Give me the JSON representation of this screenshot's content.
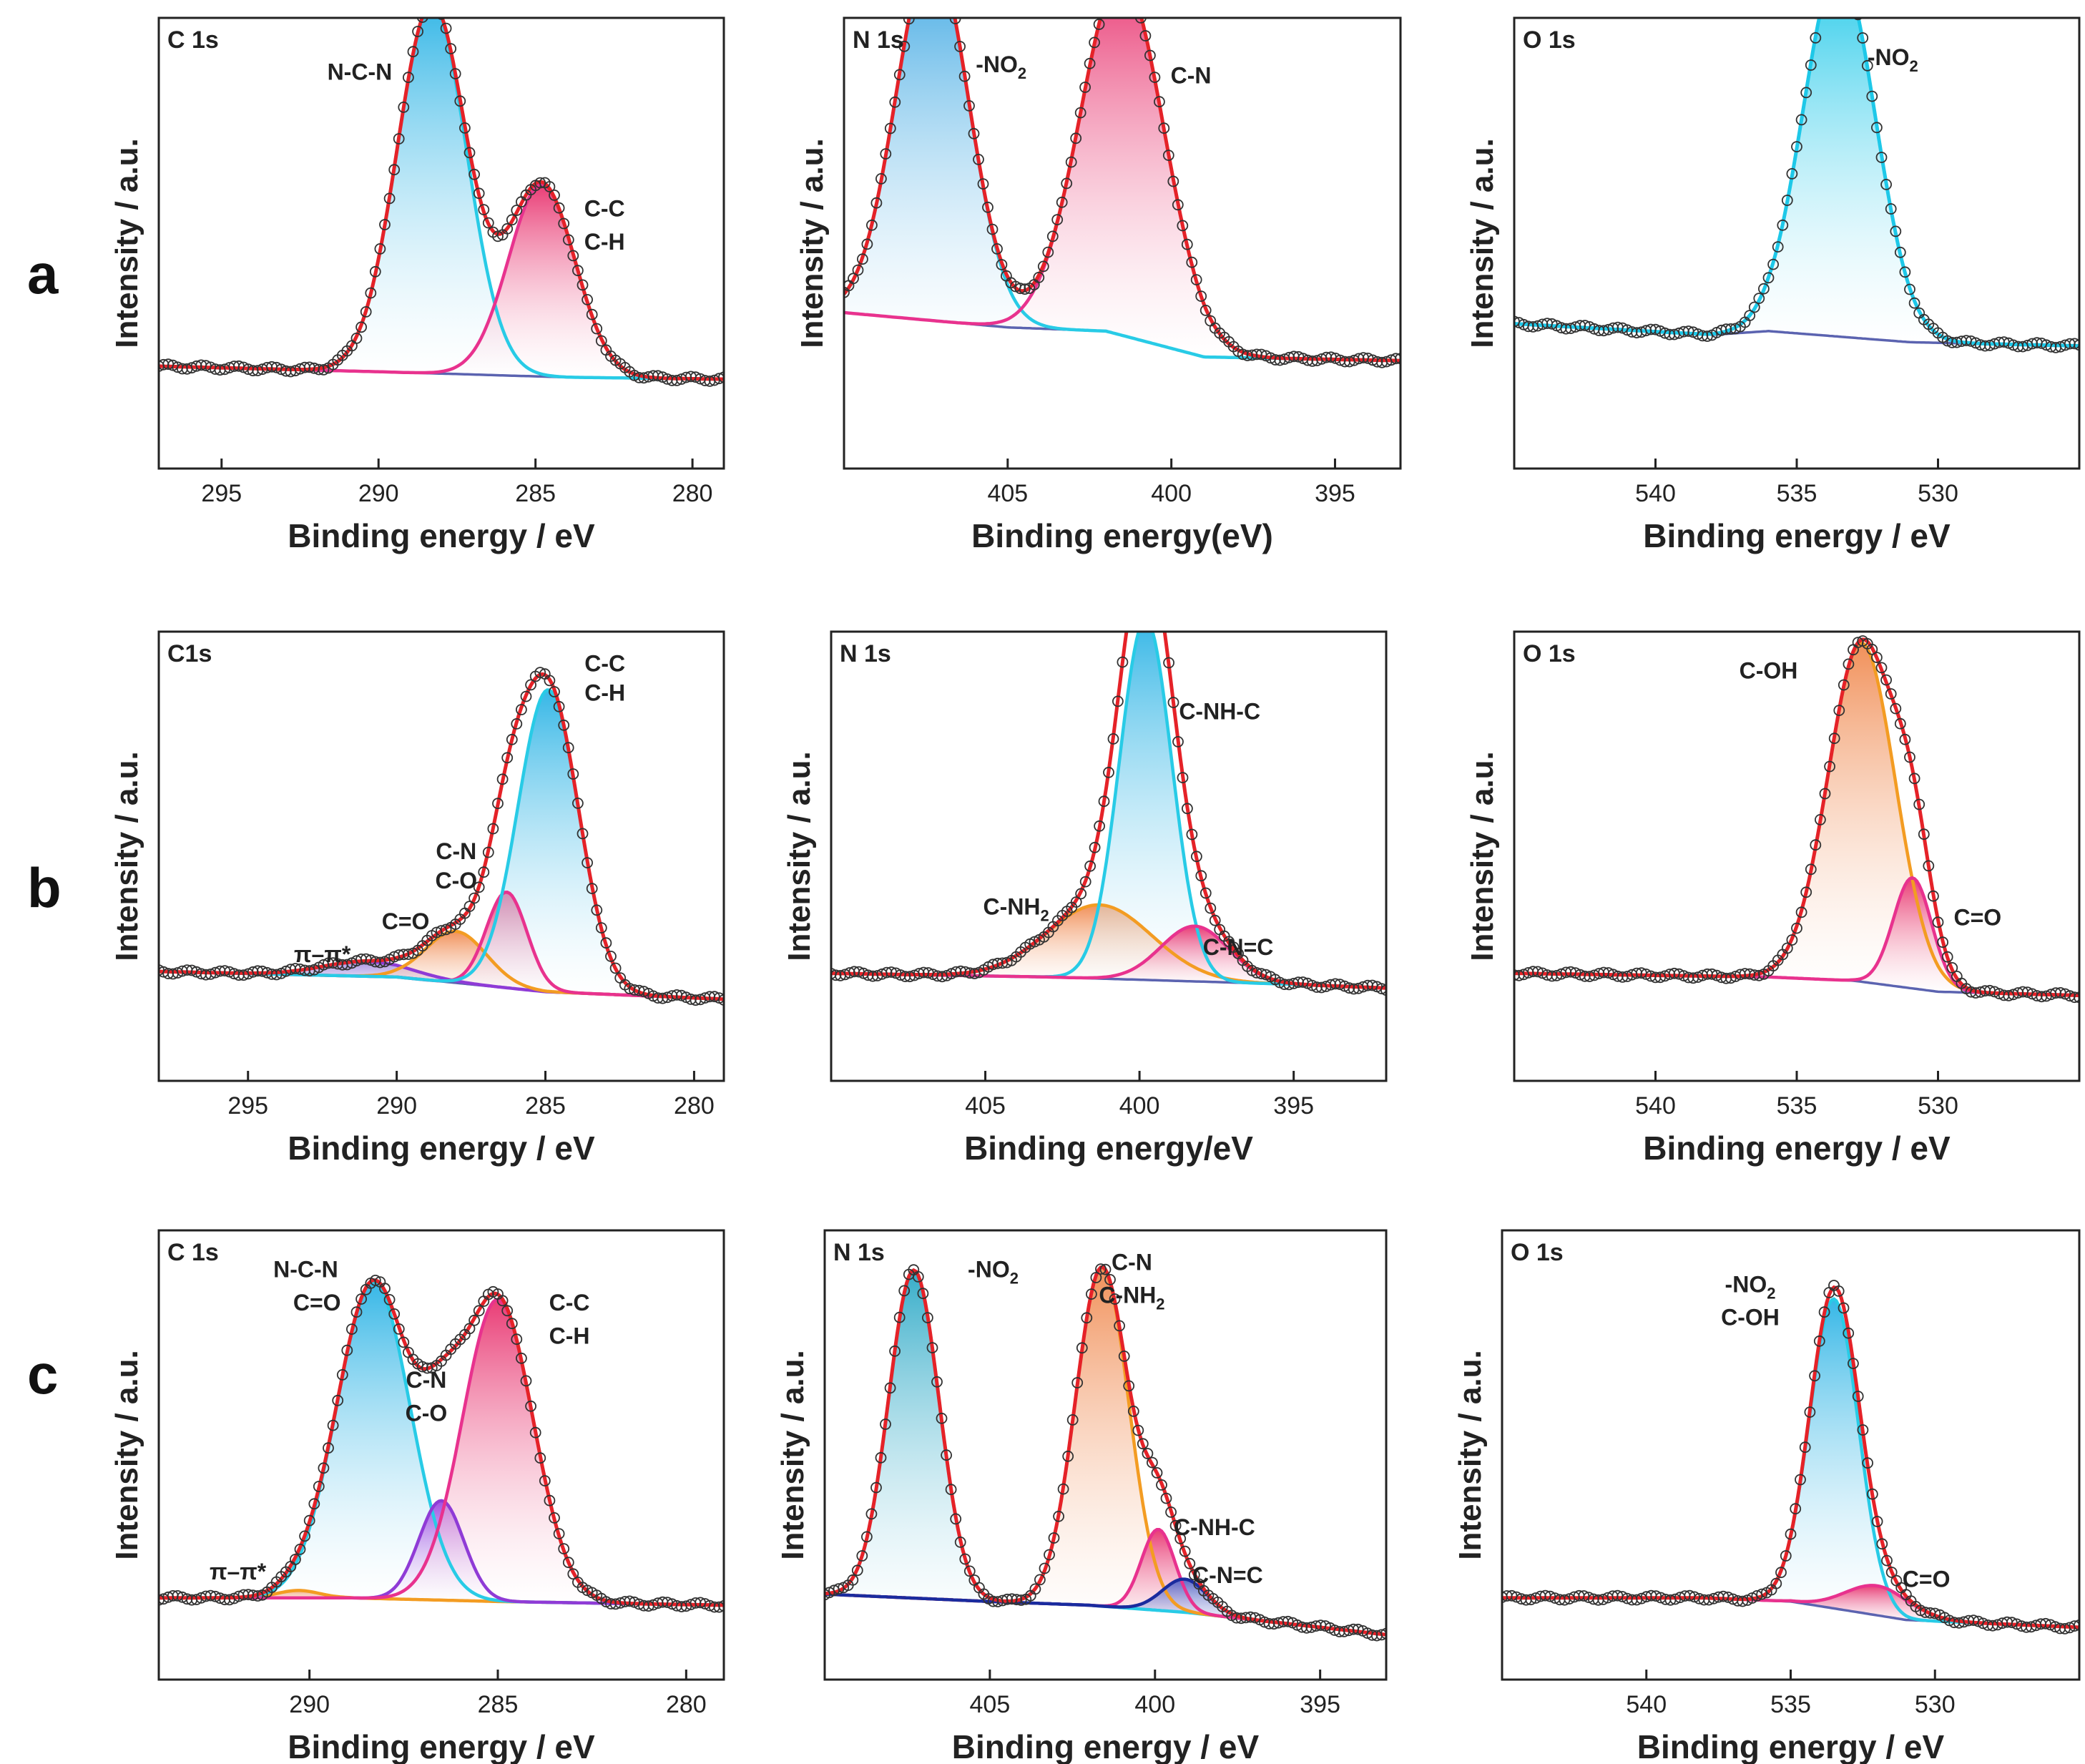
{
  "figure": {
    "row_labels": [
      "a",
      "b",
      "c"
    ]
  },
  "chart_data": [
    {
      "type": "line",
      "row": "a",
      "panel_label": "C 1s",
      "xlabel": "Binding energy / eV",
      "ylabel": "Intensity / a.u.",
      "xlim": [
        297,
        279
      ],
      "xticks": [
        295,
        290,
        285,
        280
      ],
      "background": {
        "x": [
          297,
          290,
          284,
          279
        ],
        "y": [
          0.155,
          0.14,
          0.125,
          0.12
        ]
      },
      "envelope_color": "#e52228",
      "peaks": [
        {
          "label": "N-C-N",
          "center": 288.3,
          "height": 1.0,
          "fwhm": 2.6,
          "line_color": "#28cbe6",
          "fill_top": "#2bb3e5",
          "fill_bottom": "#ffffff"
        },
        {
          "label": "C-C\nC-H",
          "center": 284.8,
          "height": 0.52,
          "fwhm": 2.5,
          "line_color": "#e8328e",
          "fill_top": "#e8326e",
          "fill_bottom": "#ffffff"
        }
      ],
      "annotations": [
        {
          "text": "N-C-N",
          "x": 290.6,
          "y": 0.93
        },
        {
          "text": "C-C",
          "x": 282.8,
          "y": 0.56
        },
        {
          "text": "C-H",
          "x": 282.8,
          "y": 0.47
        }
      ]
    },
    {
      "type": "line",
      "row": "a",
      "panel_label": "N 1s",
      "xlabel": "Binding energy(eV)",
      "ylabel": "Intensity / a.u.",
      "xlim": [
        410,
        393
      ],
      "xticks": [
        405,
        400,
        395
      ],
      "background": {
        "x": [
          410,
          405,
          402,
          399,
          393
        ],
        "y": [
          0.3,
          0.26,
          0.25,
          0.18,
          0.17
        ]
      },
      "envelope_color": "#e52228",
      "peaks": [
        {
          "label": "-NO2",
          "center": 407.3,
          "height": 1.0,
          "fwhm": 2.6,
          "line_color": "#28cbe6",
          "fill_top": "#2b9fe0",
          "fill_bottom": "#ffffff"
        },
        {
          "label": "C-N",
          "center": 401.5,
          "height": 0.97,
          "fwhm": 3.0,
          "line_color": "#e8328e",
          "fill_top": "#e8326e",
          "fill_bottom": "#ffffff"
        }
      ],
      "annotations": [
        {
          "text": "-NO",
          "sub": "2",
          "x": 405.2,
          "y": 0.95
        },
        {
          "text": "C-N",
          "x": 399.4,
          "y": 0.92
        }
      ]
    },
    {
      "type": "line",
      "row": "a",
      "panel_label": "O 1s",
      "xlabel": "Binding energy / eV",
      "ylabel": "Intensity / a.u.",
      "xlim": [
        545,
        525
      ],
      "xticks": [
        540,
        535,
        530
      ],
      "background": {
        "x": [
          545,
          538,
          536,
          531,
          525
        ],
        "y": [
          0.27,
          0.24,
          0.25,
          0.22,
          0.21
        ]
      },
      "envelope_color": "#1ec8e8",
      "peaks": [
        {
          "label": "-NO2",
          "center": 533.5,
          "height": 1.0,
          "fwhm": 3.0,
          "line_color": "#1ec8e8",
          "fill_top": "#18c6e8",
          "fill_bottom": "#ffffff"
        }
      ],
      "annotations": [
        {
          "text": "-NO",
          "sub": "2",
          "x": 531.6,
          "y": 0.97
        }
      ]
    },
    {
      "type": "line",
      "row": "b",
      "panel_label": "C1s",
      "xlabel": "Binding energy / eV",
      "ylabel": "Intensity / a.u.",
      "xlim": [
        298,
        279
      ],
      "xticks": [
        295,
        290,
        285,
        280
      ],
      "background": {
        "x": [
          298,
          290,
          285,
          279
        ],
        "y": [
          0.175,
          0.16,
          0.12,
          0.1
        ]
      },
      "envelope_color": "#e52228",
      "peaks": [
        {
          "label": "π-π*",
          "center": 291.0,
          "height": 0.04,
          "fwhm": 3.5,
          "line_color": "#8f3bd6",
          "fill_top": "#a58de0",
          "fill_bottom": "#ffffff"
        },
        {
          "label": "C=O",
          "center": 288.0,
          "height": 0.14,
          "fwhm": 2.4,
          "line_color": "#f39c22",
          "fill_top": "#f08a50",
          "fill_bottom": "#ffffff"
        },
        {
          "label": "C-N\nC-O",
          "center": 286.3,
          "height": 0.26,
          "fwhm": 1.6,
          "line_color": "#e8328e",
          "fill_top": "#e8326e",
          "fill_bottom": "#ffffff"
        },
        {
          "label": "C-C\nC-H",
          "center": 284.9,
          "height": 0.82,
          "fwhm": 2.4,
          "line_color": "#28cbe6",
          "fill_top": "#2bb3e5",
          "fill_bottom": "#ffffff"
        }
      ],
      "annotations": [
        {
          "text": "C-C",
          "x": 283.0,
          "y": 0.99
        },
        {
          "text": "C-H",
          "x": 283.0,
          "y": 0.91
        },
        {
          "text": "C-N",
          "x": 288.0,
          "y": 0.48
        },
        {
          "text": "C-O",
          "x": 288.0,
          "y": 0.4
        },
        {
          "text": "C=O",
          "x": 289.7,
          "y": 0.29
        },
        {
          "text": "π–π*",
          "x": 292.5,
          "y": 0.2
        }
      ]
    },
    {
      "type": "line",
      "row": "b",
      "panel_label": "N 1s",
      "xlabel": "Binding energy/eV",
      "ylabel": "Intensity / a.u.",
      "xlim": [
        410,
        392
      ],
      "xticks": [
        405,
        400,
        395
      ],
      "background": {
        "x": [
          410,
          403,
          399,
          395,
          392
        ],
        "y": [
          0.17,
          0.16,
          0.15,
          0.14,
          0.13
        ]
      },
      "envelope_color": "#e52228",
      "peaks": [
        {
          "label": "C-NH2",
          "center": 401.3,
          "height": 0.2,
          "fwhm": 4.0,
          "line_color": "#f39c22",
          "fill_top": "#f08a50",
          "fill_bottom": "#ffffff"
        },
        {
          "label": "C-NH-C",
          "center": 399.8,
          "height": 0.98,
          "fwhm": 2.0,
          "line_color": "#28cbe6",
          "fill_top": "#2bb3e5",
          "fill_bottom": "#ffffff"
        },
        {
          "label": "C-N=C",
          "center": 398.2,
          "height": 0.15,
          "fwhm": 2.6,
          "line_color": "#e8328e",
          "fill_top": "#e8326e",
          "fill_bottom": "#ffffff"
        }
      ],
      "annotations": [
        {
          "text": "C-NH-C",
          "x": 397.4,
          "y": 0.86
        },
        {
          "text": "C-NH",
          "sub": "2",
          "x": 404.0,
          "y": 0.33
        },
        {
          "text": "C-N=C",
          "x": 396.8,
          "y": 0.22
        }
      ]
    },
    {
      "type": "line",
      "row": "b",
      "panel_label": "O 1s",
      "xlabel": "Binding energy / eV",
      "ylabel": "Intensity / a.u.",
      "xlim": [
        545,
        525
      ],
      "xticks": [
        540,
        535,
        530
      ],
      "background": {
        "x": [
          545,
          536,
          533,
          530,
          525
        ],
        "y": [
          0.17,
          0.16,
          0.15,
          0.12,
          0.11
        ]
      },
      "envelope_color": "#e52228",
      "peaks": [
        {
          "label": "C-OH",
          "center": 532.7,
          "height": 0.92,
          "fwhm": 2.8,
          "line_color": "#f39c22",
          "fill_top": "#f08a50",
          "fill_bottom": "#ffffff"
        },
        {
          "label": "C=O",
          "center": 530.9,
          "height": 0.3,
          "fwhm": 1.6,
          "line_color": "#e8328e",
          "fill_top": "#e8326e",
          "fill_bottom": "#ffffff"
        }
      ],
      "annotations": [
        {
          "text": "C-OH",
          "x": 536.0,
          "y": 0.97
        },
        {
          "text": "C=O",
          "x": 528.6,
          "y": 0.3
        }
      ]
    },
    {
      "type": "line",
      "row": "c",
      "panel_label": "C 1s",
      "xlabel": "Binding energy / eV",
      "ylabel": "Intensity / a.u.",
      "xlim": [
        294,
        279
      ],
      "xticks": [
        290,
        285,
        280
      ],
      "background": {
        "x": [
          294,
          289,
          285,
          279
        ],
        "y": [
          0.1,
          0.1,
          0.09,
          0.08
        ]
      },
      "envelope_color": "#e52228",
      "peaks": [
        {
          "label": "π-π*",
          "center": 290.3,
          "height": 0.02,
          "fwhm": 1.3,
          "line_color": "#f39c22",
          "fill_top": "#f08a50",
          "fill_bottom": "#ffffff"
        },
        {
          "label": "N-C-N\nC=O",
          "center": 288.3,
          "height": 0.86,
          "fwhm": 2.3,
          "line_color": "#28cbe6",
          "fill_top": "#2bb3e5",
          "fill_bottom": "#ffffff"
        },
        {
          "label": "C-N\nC-O",
          "center": 286.5,
          "height": 0.27,
          "fwhm": 1.4,
          "line_color": "#8f3bd6",
          "fill_top": "#9b45e0",
          "fill_bottom": "#ffffff"
        },
        {
          "label": "C-C\nC-H",
          "center": 285.0,
          "height": 0.82,
          "fwhm": 2.2,
          "line_color": "#e8328e",
          "fill_top": "#e8326e",
          "fill_bottom": "#ffffff"
        }
      ],
      "annotations": [
        {
          "text": "N-C-N",
          "x": 290.1,
          "y": 0.97
        },
        {
          "text": "C=O",
          "x": 289.8,
          "y": 0.88
        },
        {
          "text": "C-C",
          "x": 283.1,
          "y": 0.88
        },
        {
          "text": "C-H",
          "x": 283.1,
          "y": 0.79
        },
        {
          "text": "C-N",
          "x": 286.9,
          "y": 0.67
        },
        {
          "text": "C-O",
          "x": 286.9,
          "y": 0.58
        },
        {
          "text": "π–π*",
          "x": 291.9,
          "y": 0.15
        }
      ]
    },
    {
      "type": "line",
      "row": "c",
      "panel_label": "N 1s",
      "xlabel": "Binding energy / eV",
      "ylabel": "Intensity / a.u.",
      "xlim": [
        410,
        393
      ],
      "xticks": [
        405,
        400,
        395
      ],
      "background": {
        "x": [
          410,
          405,
          402,
          399,
          393
        ],
        "y": [
          0.11,
          0.09,
          0.08,
          0.06,
          0.0
        ]
      },
      "envelope_color": "#e52228",
      "peaks": [
        {
          "label": "-NO2",
          "center": 407.3,
          "height": 0.89,
          "fwhm": 1.8,
          "line_color": "#28cbe6",
          "fill_top": "#2ba8c6",
          "fill_bottom": "#ffffff"
        },
        {
          "label": "C-N\nC-NH2",
          "center": 401.6,
          "height": 0.92,
          "fwhm": 1.9,
          "line_color": "#f39c22",
          "fill_top": "#f08a50",
          "fill_bottom": "#ffffff"
        },
        {
          "label": "C-NH-C",
          "center": 399.9,
          "height": 0.22,
          "fwhm": 1.2,
          "line_color": "#e8328e",
          "fill_top": "#e8326e",
          "fill_bottom": "#ffffff"
        },
        {
          "label": "C-N=C",
          "center": 399.1,
          "height": 0.09,
          "fwhm": 1.6,
          "line_color": "#1a2b9e",
          "fill_top": "#5160c4",
          "fill_bottom": "#ffffff"
        }
      ],
      "annotations": [
        {
          "text": "-NO",
          "sub": "2",
          "x": 404.9,
          "y": 0.97
        },
        {
          "text": "C-N",
          "x": 400.7,
          "y": 0.99
        },
        {
          "text": "C-NH",
          "sub": "2",
          "x": 400.7,
          "y": 0.9
        },
        {
          "text": "C-NH-C",
          "x": 398.2,
          "y": 0.27
        },
        {
          "text": "C-N=C",
          "x": 397.8,
          "y": 0.14
        }
      ]
    },
    {
      "type": "line",
      "row": "c",
      "panel_label": "O 1s",
      "xlabel": "Binding energy / eV",
      "ylabel": "Intensity / a.u.",
      "xlim": [
        545,
        525
      ],
      "xticks": [
        540,
        535,
        530
      ],
      "background": {
        "x": [
          545,
          538,
          535,
          531,
          525
        ],
        "y": [
          0.1,
          0.1,
          0.09,
          0.04,
          0.02
        ]
      },
      "envelope_color": "#e52228",
      "peaks": [
        {
          "label": "-NO2\nC-OH",
          "center": 533.5,
          "height": 0.84,
          "fwhm": 2.0,
          "line_color": "#28cbe6",
          "fill_top": "#2bb3e5",
          "fill_bottom": "#ffffff"
        },
        {
          "label": "C=O",
          "center": 532.0,
          "height": 0.08,
          "fwhm": 2.6,
          "line_color": "#e8328e",
          "fill_top": "#e8326e",
          "fill_bottom": "#ffffff"
        }
      ],
      "annotations": [
        {
          "text": "-NO",
          "sub": "2",
          "x": 536.4,
          "y": 0.93
        },
        {
          "text": "C-OH",
          "x": 536.4,
          "y": 0.84
        },
        {
          "text": "C=O",
          "x": 530.3,
          "y": 0.13
        }
      ]
    }
  ]
}
